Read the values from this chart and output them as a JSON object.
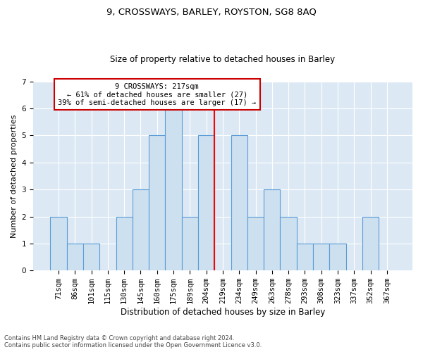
{
  "title1": "9, CROSSWAYS, BARLEY, ROYSTON, SG8 8AQ",
  "title2": "Size of property relative to detached houses in Barley",
  "xlabel": "Distribution of detached houses by size in Barley",
  "ylabel": "Number of detached properties",
  "categories": [
    "71sqm",
    "86sqm",
    "101sqm",
    "115sqm",
    "130sqm",
    "145sqm",
    "160sqm",
    "175sqm",
    "189sqm",
    "204sqm",
    "219sqm",
    "234sqm",
    "249sqm",
    "263sqm",
    "278sqm",
    "293sqm",
    "308sqm",
    "323sqm",
    "337sqm",
    "352sqm",
    "367sqm"
  ],
  "values": [
    2,
    1,
    1,
    0,
    2,
    3,
    5,
    6,
    2,
    5,
    0,
    5,
    2,
    3,
    2,
    1,
    1,
    1,
    0,
    2,
    0
  ],
  "bar_color": "#cce0f0",
  "bar_edge_color": "#5b9bd5",
  "red_line_x": 9.5,
  "highlight_line_label": "9 CROSSWAYS: 217sqm",
  "highlight_line_sublabel1": "← 61% of detached houses are smaller (27)",
  "highlight_line_sublabel2": "39% of semi-detached houses are larger (17) →",
  "annotation_box_color": "#cc0000",
  "ylim": [
    0,
    7
  ],
  "yticks": [
    0,
    1,
    2,
    3,
    4,
    5,
    6,
    7
  ],
  "bg_color": "#dce9f5",
  "grid_color": "#ffffff",
  "footnote": "Contains HM Land Registry data © Crown copyright and database right 2024.\nContains public sector information licensed under the Open Government Licence v3.0.",
  "title1_fontsize": 9.5,
  "title2_fontsize": 8.5,
  "xlabel_fontsize": 8.5,
  "ylabel_fontsize": 8,
  "tick_fontsize": 7.5,
  "annot_fontsize": 7.5
}
